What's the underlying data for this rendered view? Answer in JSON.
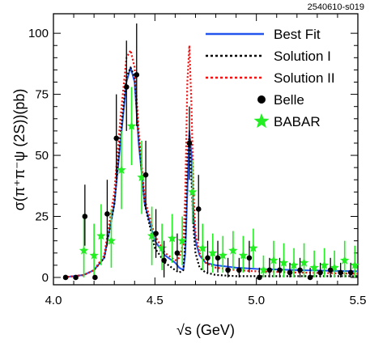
{
  "figure_code": "2540610-s019",
  "chart_data": {
    "type": "scatter",
    "xlabel": "√s (GeV)",
    "ylabel": "σ(π⁺π⁻ψ (2S))(pb)",
    "xlim": [
      4.0,
      5.5
    ],
    "ylim": [
      -3,
      108
    ],
    "xticks": [
      4.0,
      4.5,
      5.0,
      5.5
    ],
    "yticks": [
      0,
      25,
      50,
      75,
      100
    ],
    "legend_position": "top-right",
    "colors": {
      "best_fit": "#2255ee",
      "solution1": "#000000",
      "solution2": "#ee1111",
      "belle": "#000000",
      "babar": "#22ee22"
    },
    "legend": [
      {
        "key": "best_fit",
        "label": "Best Fit",
        "style": "solid-line"
      },
      {
        "key": "solution1",
        "label": "Solution I",
        "style": "dotted-line"
      },
      {
        "key": "solution2",
        "label": "Solution II",
        "style": "dotted-line"
      },
      {
        "key": "belle",
        "label": "Belle",
        "style": "dot"
      },
      {
        "key": "babar",
        "label": "BABAR",
        "style": "star"
      }
    ],
    "belle_points": [
      {
        "x": 4.06,
        "y": 0,
        "lo": 0,
        "hi": 0
      },
      {
        "x": 4.11,
        "y": 0,
        "lo": 0,
        "hi": 0
      },
      {
        "x": 4.155,
        "y": 25,
        "lo": 13,
        "hi": 38
      },
      {
        "x": 4.205,
        "y": 0,
        "lo": 0,
        "hi": 0
      },
      {
        "x": 4.265,
        "y": 26,
        "lo": 13,
        "hi": 40
      },
      {
        "x": 4.31,
        "y": 57,
        "lo": 40,
        "hi": 75
      },
      {
        "x": 4.36,
        "y": 78,
        "lo": 60,
        "hi": 97
      },
      {
        "x": 4.41,
        "y": 83,
        "lo": 62,
        "hi": 104
      },
      {
        "x": 4.455,
        "y": 42,
        "lo": 28,
        "hi": 56
      },
      {
        "x": 4.505,
        "y": 18,
        "lo": 8,
        "hi": 28
      },
      {
        "x": 4.545,
        "y": 7,
        "lo": 0,
        "hi": 15
      },
      {
        "x": 4.61,
        "y": 10,
        "lo": 3,
        "hi": 18
      },
      {
        "x": 4.67,
        "y": 55,
        "lo": 40,
        "hi": 70
      },
      {
        "x": 4.715,
        "y": 28,
        "lo": 15,
        "hi": 42
      },
      {
        "x": 4.76,
        "y": 8,
        "lo": 2,
        "hi": 15
      },
      {
        "x": 4.81,
        "y": 8,
        "lo": 2,
        "hi": 15
      },
      {
        "x": 4.86,
        "y": 3,
        "lo": 0,
        "hi": 8
      },
      {
        "x": 4.915,
        "y": 3,
        "lo": 0,
        "hi": 8
      },
      {
        "x": 4.965,
        "y": 8,
        "lo": 2,
        "hi": 15
      },
      {
        "x": 5.015,
        "y": 0,
        "lo": 0,
        "hi": 4
      },
      {
        "x": 5.065,
        "y": 3,
        "lo": 0,
        "hi": 8
      },
      {
        "x": 5.115,
        "y": 3,
        "lo": 0,
        "hi": 8
      },
      {
        "x": 5.165,
        "y": 2,
        "lo": 0,
        "hi": 6
      },
      {
        "x": 5.215,
        "y": 3,
        "lo": 0,
        "hi": 8
      },
      {
        "x": 5.265,
        "y": 0,
        "lo": 0,
        "hi": 4
      },
      {
        "x": 5.315,
        "y": 2,
        "lo": 0,
        "hi": 6
      },
      {
        "x": 5.365,
        "y": 3,
        "lo": 0,
        "hi": 8
      },
      {
        "x": 5.415,
        "y": 2,
        "lo": 0,
        "hi": 6
      },
      {
        "x": 5.465,
        "y": 2,
        "lo": 0,
        "hi": 6
      }
    ],
    "babar_points": [
      {
        "x": 4.15,
        "y": 11,
        "lo": 0,
        "hi": 26
      },
      {
        "x": 4.2,
        "y": 9,
        "lo": 0,
        "hi": 22
      },
      {
        "x": 4.235,
        "y": 17,
        "lo": 5,
        "hi": 30
      },
      {
        "x": 4.285,
        "y": 15,
        "lo": 4,
        "hi": 28
      },
      {
        "x": 4.335,
        "y": 44,
        "lo": 28,
        "hi": 60
      },
      {
        "x": 4.385,
        "y": 62,
        "lo": 46,
        "hi": 78
      },
      {
        "x": 4.435,
        "y": 41,
        "lo": 26,
        "hi": 56
      },
      {
        "x": 4.485,
        "y": 17,
        "lo": 5,
        "hi": 29
      },
      {
        "x": 4.535,
        "y": 12,
        "lo": 3,
        "hi": 22
      },
      {
        "x": 4.585,
        "y": 16,
        "lo": 6,
        "hi": 26
      },
      {
        "x": 4.635,
        "y": 15,
        "lo": 5,
        "hi": 25
      },
      {
        "x": 4.685,
        "y": 35,
        "lo": 22,
        "hi": 48
      },
      {
        "x": 4.735,
        "y": 12,
        "lo": 3,
        "hi": 22
      },
      {
        "x": 4.785,
        "y": 10,
        "lo": 2,
        "hi": 18
      },
      {
        "x": 4.835,
        "y": 9,
        "lo": 2,
        "hi": 17
      },
      {
        "x": 4.885,
        "y": 11,
        "lo": 3,
        "hi": 19
      },
      {
        "x": 4.935,
        "y": 9,
        "lo": 2,
        "hi": 17
      },
      {
        "x": 4.985,
        "y": 12,
        "lo": 4,
        "hi": 20
      },
      {
        "x": 5.035,
        "y": 3,
        "lo": 0,
        "hi": 9
      },
      {
        "x": 5.085,
        "y": 7,
        "lo": 0,
        "hi": 15
      },
      {
        "x": 5.135,
        "y": 6,
        "lo": 0,
        "hi": 14
      },
      {
        "x": 5.185,
        "y": 5,
        "lo": 0,
        "hi": 12
      },
      {
        "x": 5.235,
        "y": 6,
        "lo": 0,
        "hi": 14
      },
      {
        "x": 5.285,
        "y": 4,
        "lo": 0,
        "hi": 11
      },
      {
        "x": 5.335,
        "y": 5,
        "lo": 0,
        "hi": 12
      },
      {
        "x": 5.385,
        "y": 4,
        "lo": 0,
        "hi": 11
      },
      {
        "x": 5.435,
        "y": 7,
        "lo": 0,
        "hi": 15
      },
      {
        "x": 5.485,
        "y": 5,
        "lo": 0,
        "hi": 13
      }
    ],
    "curves": [
      {
        "key": "best_fit",
        "x": [
          4.05,
          4.15,
          4.2,
          4.25,
          4.3,
          4.33,
          4.36,
          4.38,
          4.4,
          4.42,
          4.45,
          4.5,
          4.55,
          4.6,
          4.62,
          4.64,
          4.65,
          4.66,
          4.67,
          4.68,
          4.69,
          4.7,
          4.72,
          4.75,
          4.8,
          4.9,
          5.0,
          5.2,
          5.5
        ],
        "y": [
          0,
          1,
          3,
          8,
          30,
          55,
          80,
          86,
          80,
          55,
          30,
          15,
          9,
          6,
          4,
          3,
          10,
          35,
          60,
          50,
          25,
          15,
          9,
          6,
          5,
          4,
          3.5,
          3,
          2.5
        ]
      },
      {
        "key": "solution1",
        "x": [
          4.05,
          4.15,
          4.2,
          4.25,
          4.3,
          4.33,
          4.36,
          4.38,
          4.4,
          4.42,
          4.45,
          4.5,
          4.55,
          4.6,
          4.62,
          4.64,
          4.65,
          4.66,
          4.67,
          4.68,
          4.69,
          4.7,
          4.72,
          4.75,
          4.8,
          4.9,
          5.0,
          5.2,
          5.5
        ],
        "y": [
          0,
          1,
          3,
          8,
          30,
          58,
          82,
          86,
          82,
          58,
          30,
          12,
          6,
          3,
          2,
          3,
          15,
          50,
          58,
          40,
          20,
          10,
          4,
          2,
          1,
          0.5,
          0.5,
          0.5,
          0.5
        ]
      },
      {
        "key": "solution2",
        "x": [
          4.05,
          4.15,
          4.2,
          4.25,
          4.3,
          4.33,
          4.36,
          4.38,
          4.4,
          4.42,
          4.45,
          4.5,
          4.55,
          4.6,
          4.62,
          4.64,
          4.65,
          4.66,
          4.67,
          4.68,
          4.69,
          4.7,
          4.72,
          4.75,
          4.8,
          4.9,
          5.0,
          5.2,
          5.5
        ],
        "y": [
          0,
          1,
          3,
          9,
          35,
          65,
          90,
          93,
          86,
          60,
          32,
          17,
          10,
          7,
          8,
          14,
          35,
          80,
          95,
          70,
          35,
          18,
          10,
          6,
          4,
          3,
          2.5,
          2,
          1.5
        ]
      }
    ]
  }
}
